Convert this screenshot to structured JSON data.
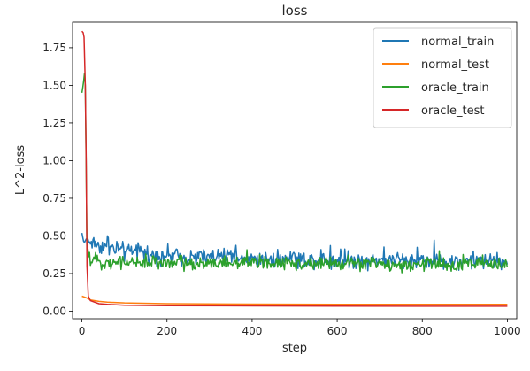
{
  "chart_data": {
    "type": "line",
    "title": "loss",
    "xlabel": "step",
    "ylabel": "L^2-loss",
    "xlim": [
      -22,
      1022
    ],
    "ylim": [
      -0.05,
      1.92
    ],
    "xticks": [
      0,
      200,
      400,
      600,
      800,
      1000
    ],
    "xtick_labels": [
      "0",
      "200",
      "400",
      "600",
      "800",
      "1000"
    ],
    "yticks": [
      0.0,
      0.25,
      0.5,
      0.75,
      1.0,
      1.25,
      1.5,
      1.75
    ],
    "ytick_labels": [
      "0.00",
      "0.25",
      "0.50",
      "0.75",
      "1.00",
      "1.25",
      "1.50",
      "1.75"
    ],
    "grid": false,
    "legend_position": "top-right",
    "series": [
      {
        "name": "normal_train",
        "color": "#1f77b4",
        "points": [
          [
            0,
            0.52
          ],
          [
            5,
            0.45
          ],
          [
            10,
            0.48
          ],
          [
            20,
            0.46
          ],
          [
            40,
            0.44
          ],
          [
            60,
            0.42
          ],
          [
            100,
            0.4
          ],
          [
            150,
            0.38
          ],
          [
            200,
            0.37
          ],
          [
            300,
            0.36
          ],
          [
            400,
            0.35
          ],
          [
            500,
            0.345
          ],
          [
            600,
            0.34
          ],
          [
            700,
            0.34
          ],
          [
            800,
            0.335
          ],
          [
            900,
            0.335
          ],
          [
            1000,
            0.33
          ]
        ],
        "noise": 0.035
      },
      {
        "name": "normal_test",
        "color": "#ff7f0e",
        "points": [
          [
            0,
            0.1
          ],
          [
            10,
            0.09
          ],
          [
            20,
            0.075
          ],
          [
            40,
            0.065
          ],
          [
            60,
            0.06
          ],
          [
            100,
            0.055
          ],
          [
            200,
            0.05
          ],
          [
            400,
            0.047
          ],
          [
            600,
            0.046
          ],
          [
            800,
            0.045
          ],
          [
            1000,
            0.045
          ]
        ],
        "noise": 0.0
      },
      {
        "name": "oracle_train",
        "color": "#2ca02c",
        "points": [
          [
            0,
            1.45
          ],
          [
            3,
            1.5
          ],
          [
            6,
            1.58
          ],
          [
            8,
            1.5
          ],
          [
            12,
            0.4
          ],
          [
            20,
            0.34
          ],
          [
            40,
            0.33
          ],
          [
            100,
            0.325
          ],
          [
            200,
            0.32
          ],
          [
            400,
            0.32
          ],
          [
            600,
            0.315
          ],
          [
            800,
            0.31
          ],
          [
            1000,
            0.31
          ]
        ],
        "noise": 0.028
      },
      {
        "name": "oracle_test",
        "color": "#d62728",
        "points": [
          [
            0,
            1.86
          ],
          [
            3,
            1.85
          ],
          [
            5,
            1.82
          ],
          [
            8,
            1.5
          ],
          [
            10,
            1.0
          ],
          [
            12,
            0.3
          ],
          [
            15,
            0.1
          ],
          [
            20,
            0.07
          ],
          [
            40,
            0.05
          ],
          [
            60,
            0.045
          ],
          [
            100,
            0.04
          ],
          [
            200,
            0.037
          ],
          [
            400,
            0.035
          ],
          [
            600,
            0.034
          ],
          [
            800,
            0.033
          ],
          [
            1000,
            0.033
          ]
        ],
        "noise": 0.0
      }
    ]
  }
}
